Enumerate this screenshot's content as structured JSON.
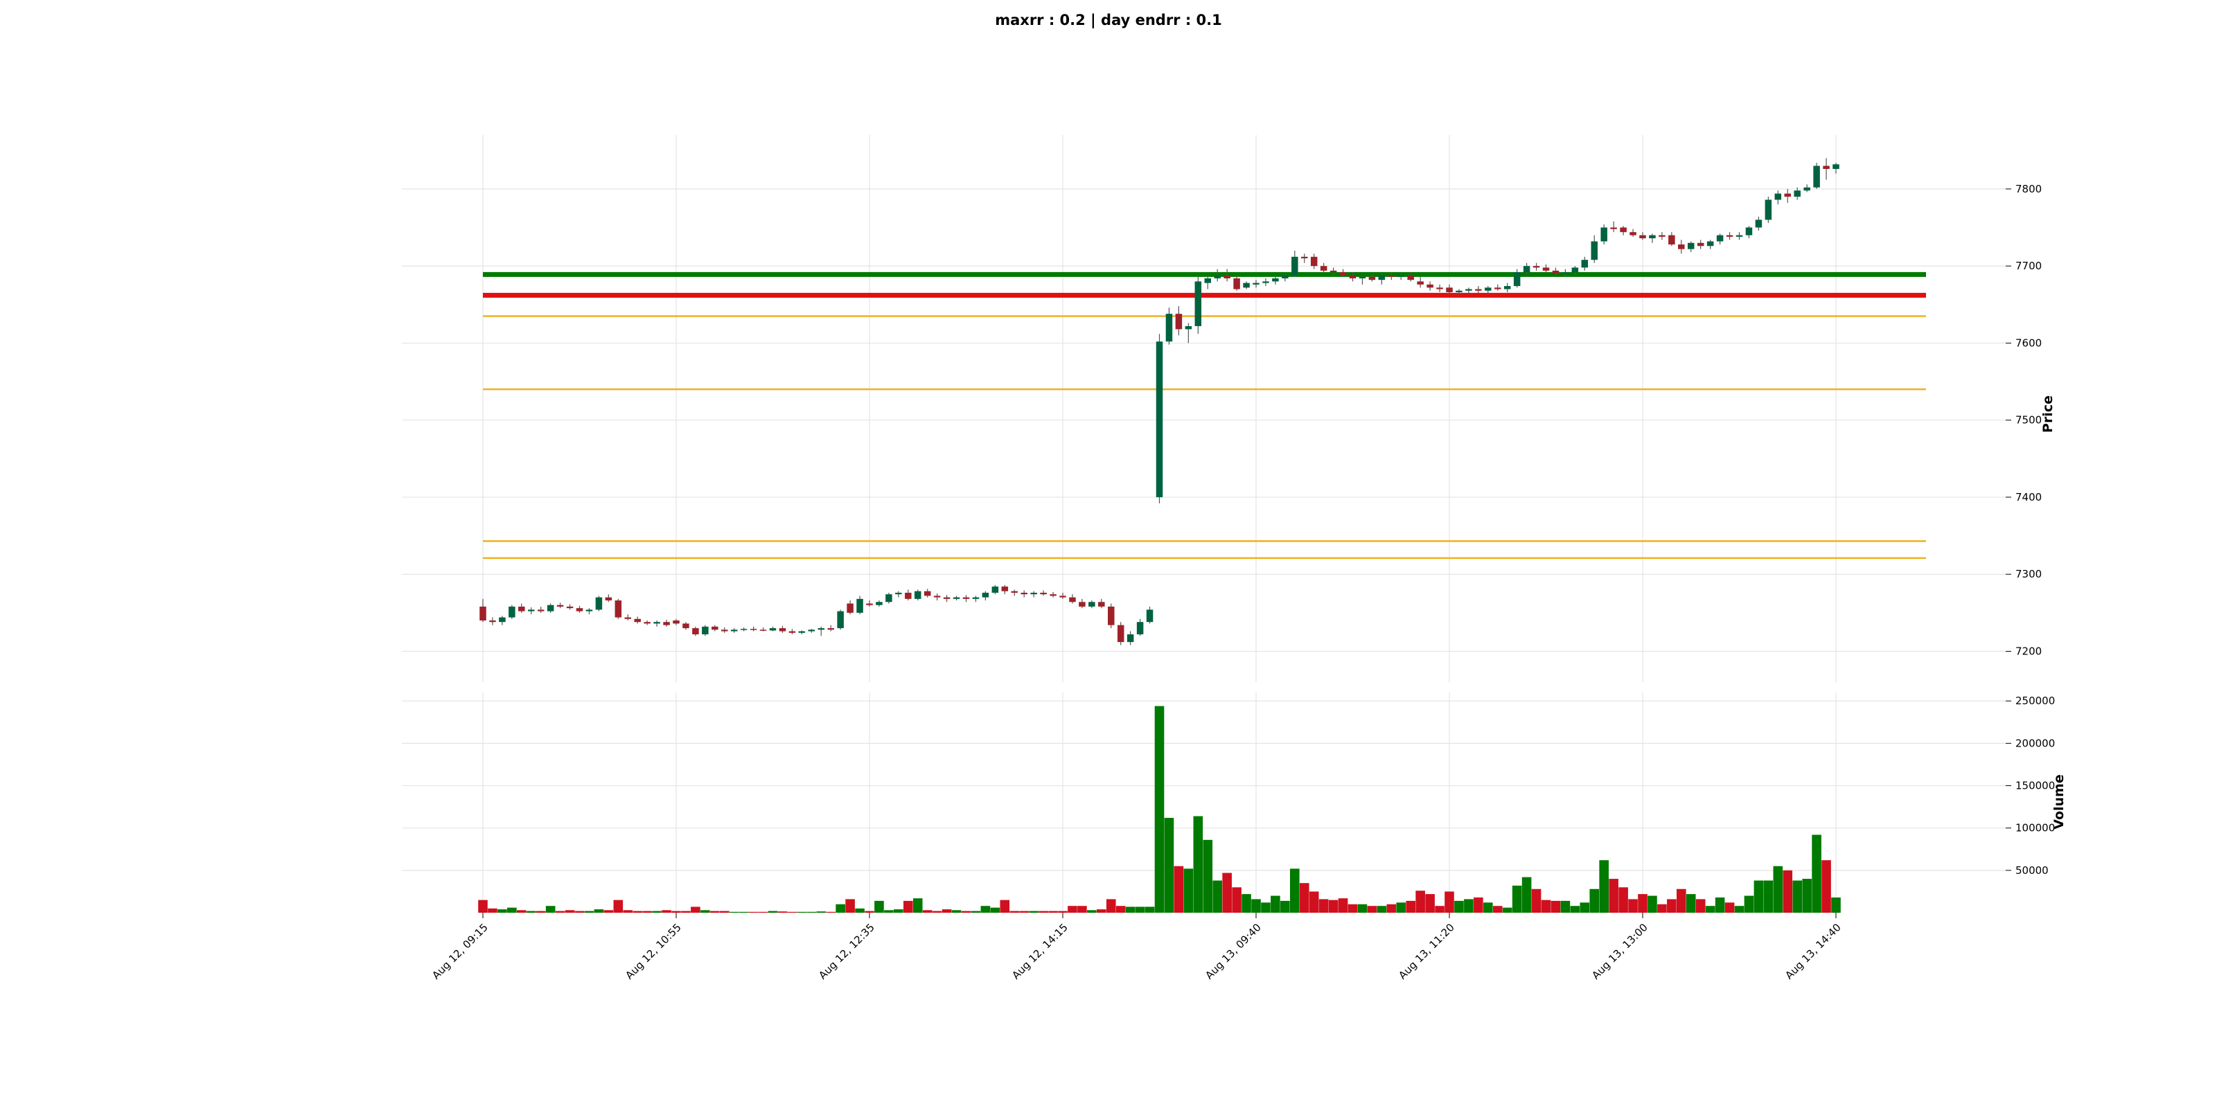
{
  "chart_data": {
    "type": "candlestick",
    "title": "maxrr : 0.2   |   day endrr : 0.1",
    "price_label": "Price",
    "volume_label": "Volume",
    "price_ylim": [
      7160,
      7870
    ],
    "volume_ylim": [
      0,
      260000
    ],
    "price_ticks": [
      7200,
      7300,
      7400,
      7500,
      7600,
      7700,
      7800
    ],
    "volume_ticks": [
      50000,
      100000,
      150000,
      200000,
      250000
    ],
    "x_tick_labels": [
      "Aug 12, 09:15",
      "Aug 12, 10:55",
      "Aug 12, 12:35",
      "Aug 12, 14:15",
      "Aug 13, 09:40",
      "Aug 13, 11:20",
      "Aug 13, 13:00",
      "Aug 13, 14:40"
    ],
    "x_tick_index": [
      0,
      20,
      40,
      60,
      80,
      100,
      120,
      140
    ],
    "colors": {
      "up": "#006340",
      "down": "#a02128",
      "vol_up": "#007a00",
      "vol_down": "#d0101e",
      "line_green": "#007a00",
      "line_red": "#e01010",
      "line_orange": "#f0b020"
    },
    "hlines": [
      {
        "price": 7689,
        "color": "#007a00",
        "width": 7
      },
      {
        "price": 7662,
        "color": "#e01010",
        "width": 7
      },
      {
        "price": 7635,
        "color": "#f0b020",
        "width": 2.5
      },
      {
        "price": 7540,
        "color": "#f0b020",
        "width": 2.5
      },
      {
        "price": 7343,
        "color": "#f0b020",
        "width": 2.5
      },
      {
        "price": 7321,
        "color": "#f0b020",
        "width": 2.5
      }
    ],
    "candles": [
      [
        7258,
        7268,
        7238,
        7240,
        15000
      ],
      [
        7240,
        7244,
        7234,
        7238,
        5000
      ],
      [
        7238,
        7246,
        7234,
        7244,
        4000
      ],
      [
        7244,
        7260,
        7242,
        7258,
        6000
      ],
      [
        7258,
        7262,
        7250,
        7252,
        3000
      ],
      [
        7252,
        7257,
        7248,
        7254,
        2000
      ],
      [
        7254,
        7258,
        7250,
        7252,
        2000
      ],
      [
        7252,
        7262,
        7250,
        7260,
        8000
      ],
      [
        7260,
        7263,
        7256,
        7258,
        2000
      ],
      [
        7258,
        7261,
        7254,
        7256,
        3000
      ],
      [
        7256,
        7259,
        7250,
        7252,
        2000
      ],
      [
        7252,
        7256,
        7248,
        7254,
        2000
      ],
      [
        7254,
        7272,
        7252,
        7270,
        4000
      ],
      [
        7270,
        7274,
        7264,
        7266,
        3000
      ],
      [
        7266,
        7268,
        7242,
        7244,
        15000
      ],
      [
        7244,
        7248,
        7240,
        7242,
        3000
      ],
      [
        7242,
        7245,
        7236,
        7238,
        2000
      ],
      [
        7238,
        7240,
        7234,
        7236,
        2000
      ],
      [
        7236,
        7240,
        7232,
        7238,
        2000
      ],
      [
        7238,
        7241,
        7232,
        7234,
        3000
      ],
      [
        7240,
        7242,
        7234,
        7236,
        2000
      ],
      [
        7236,
        7238,
        7228,
        7230,
        2000
      ],
      [
        7230,
        7232,
        7220,
        7222,
        7000
      ],
      [
        7222,
        7234,
        7220,
        7232,
        3000
      ],
      [
        7232,
        7234,
        7226,
        7228,
        2000
      ],
      [
        7228,
        7231,
        7224,
        7226,
        2000
      ],
      [
        7226,
        7230,
        7224,
        7228,
        1000
      ],
      [
        7228,
        7231,
        7226,
        7229,
        1000
      ],
      [
        7229,
        7232,
        7226,
        7228,
        1000
      ],
      [
        7228,
        7231,
        7226,
        7227,
        1000
      ],
      [
        7227,
        7232,
        7226,
        7230,
        2000
      ],
      [
        7230,
        7233,
        7224,
        7226,
        1500
      ],
      [
        7226,
        7229,
        7222,
        7224,
        1000
      ],
      [
        7224,
        7227,
        7222,
        7226,
        1000
      ],
      [
        7226,
        7229,
        7224,
        7228,
        1000
      ],
      [
        7228,
        7232,
        7220,
        7230,
        1500
      ],
      [
        7230,
        7234,
        7226,
        7228,
        1000
      ],
      [
        7230,
        7254,
        7228,
        7252,
        10000
      ],
      [
        7262,
        7266,
        7248,
        7250,
        16000
      ],
      [
        7250,
        7272,
        7248,
        7268,
        5000
      ],
      [
        7262,
        7266,
        7258,
        7260,
        2000
      ],
      [
        7260,
        7266,
        7258,
        7264,
        14000
      ],
      [
        7264,
        7276,
        7262,
        7274,
        3000
      ],
      [
        7274,
        7278,
        7270,
        7276,
        4000
      ],
      [
        7276,
        7280,
        7266,
        7268,
        14000
      ],
      [
        7268,
        7280,
        7266,
        7278,
        17000
      ],
      [
        7278,
        7281,
        7270,
        7272,
        3000
      ],
      [
        7272,
        7275,
        7266,
        7270,
        2000
      ],
      [
        7270,
        7273,
        7264,
        7268,
        4000
      ],
      [
        7268,
        7272,
        7266,
        7270,
        3000
      ],
      [
        7270,
        7273,
        7264,
        7268,
        2000
      ],
      [
        7268,
        7272,
        7264,
        7270,
        2000
      ],
      [
        7270,
        7278,
        7266,
        7276,
        8000
      ],
      [
        7276,
        7286,
        7274,
        7284,
        6000
      ],
      [
        7284,
        7286,
        7274,
        7278,
        15000
      ],
      [
        7278,
        7280,
        7272,
        7276,
        2000
      ],
      [
        7276,
        7279,
        7270,
        7274,
        2000
      ],
      [
        7274,
        7278,
        7270,
        7276,
        2000
      ],
      [
        7276,
        7279,
        7272,
        7274,
        2000
      ],
      [
        7274,
        7277,
        7270,
        7272,
        2000
      ],
      [
        7272,
        7276,
        7268,
        7270,
        2000
      ],
      [
        7270,
        7274,
        7262,
        7264,
        8000
      ],
      [
        7264,
        7268,
        7256,
        7258,
        8000
      ],
      [
        7258,
        7266,
        7256,
        7264,
        3000
      ],
      [
        7264,
        7268,
        7256,
        7258,
        4000
      ],
      [
        7258,
        7262,
        7230,
        7234,
        16000
      ],
      [
        7234,
        7238,
        7208,
        7212,
        8000
      ],
      [
        7212,
        7226,
        7208,
        7222,
        7000
      ],
      [
        7222,
        7242,
        7220,
        7238,
        7000
      ],
      [
        7238,
        7258,
        7236,
        7254,
        7000
      ],
      [
        7400,
        7612,
        7392,
        7602,
        244000
      ],
      [
        7602,
        7646,
        7598,
        7638,
        112000
      ],
      [
        7638,
        7648,
        7610,
        7618,
        55000
      ],
      [
        7618,
        7626,
        7600,
        7622,
        52000
      ],
      [
        7622,
        7686,
        7612,
        7680,
        114000
      ],
      [
        7678,
        7688,
        7670,
        7684,
        86000
      ],
      [
        7684,
        7696,
        7680,
        7688,
        38000
      ],
      [
        7688,
        7696,
        7680,
        7684,
        47000
      ],
      [
        7684,
        7688,
        7668,
        7670,
        30000
      ],
      [
        7672,
        7680,
        7670,
        7678,
        22000
      ],
      [
        7676,
        7682,
        7672,
        7678,
        16000
      ],
      [
        7678,
        7684,
        7674,
        7680,
        12000
      ],
      [
        7680,
        7688,
        7676,
        7684,
        20000
      ],
      [
        7684,
        7690,
        7680,
        7688,
        14000
      ],
      [
        7688,
        7720,
        7686,
        7712,
        52000
      ],
      [
        7712,
        7716,
        7704,
        7710,
        35000
      ],
      [
        7712,
        7716,
        7696,
        7700,
        25000
      ],
      [
        7700,
        7704,
        7690,
        7694,
        16000
      ],
      [
        7694,
        7698,
        7688,
        7692,
        15000
      ],
      [
        7692,
        7696,
        7686,
        7688,
        17000
      ],
      [
        7688,
        7692,
        7680,
        7684,
        10000
      ],
      [
        7684,
        7688,
        7676,
        7686,
        10000
      ],
      [
        7686,
        7690,
        7680,
        7682,
        8000
      ],
      [
        7682,
        7690,
        7676,
        7688,
        8000
      ],
      [
        7688,
        7692,
        7682,
        7686,
        10000
      ],
      [
        7686,
        7690,
        7682,
        7688,
        12000
      ],
      [
        7688,
        7692,
        7680,
        7682,
        14000
      ],
      [
        7680,
        7686,
        7672,
        7676,
        26000
      ],
      [
        7676,
        7680,
        7668,
        7672,
        22000
      ],
      [
        7672,
        7676,
        7666,
        7670,
        8000
      ],
      [
        7672,
        7676,
        7664,
        7666,
        25000
      ],
      [
        7666,
        7670,
        7662,
        7668,
        14000
      ],
      [
        7668,
        7672,
        7664,
        7670,
        16000
      ],
      [
        7670,
        7674,
        7664,
        7668,
        18000
      ],
      [
        7668,
        7674,
        7664,
        7672,
        12000
      ],
      [
        7672,
        7676,
        7668,
        7670,
        8000
      ],
      [
        7670,
        7678,
        7666,
        7674,
        6000
      ],
      [
        7674,
        7696,
        7672,
        7692,
        32000
      ],
      [
        7692,
        7704,
        7688,
        7700,
        42000
      ],
      [
        7700,
        7704,
        7694,
        7698,
        28000
      ],
      [
        7698,
        7702,
        7690,
        7694,
        15000
      ],
      [
        7694,
        7698,
        7688,
        7690,
        14000
      ],
      [
        7690,
        7696,
        7686,
        7692,
        14000
      ],
      [
        7692,
        7700,
        7688,
        7698,
        8000
      ],
      [
        7698,
        7712,
        7694,
        7708,
        12000
      ],
      [
        7708,
        7740,
        7704,
        7732,
        28000
      ],
      [
        7732,
        7754,
        7728,
        7750,
        62000
      ],
      [
        7750,
        7758,
        7744,
        7748,
        40000
      ],
      [
        7750,
        7752,
        7740,
        7744,
        30000
      ],
      [
        7744,
        7748,
        7738,
        7740,
        16000
      ],
      [
        7740,
        7744,
        7734,
        7736,
        22000
      ],
      [
        7736,
        7742,
        7730,
        7740,
        20000
      ],
      [
        7740,
        7744,
        7734,
        7738,
        10000
      ],
      [
        7740,
        7744,
        7726,
        7728,
        16000
      ],
      [
        7728,
        7734,
        7716,
        7722,
        28000
      ],
      [
        7722,
        7732,
        7718,
        7730,
        22000
      ],
      [
        7730,
        7734,
        7722,
        7726,
        16000
      ],
      [
        7726,
        7734,
        7722,
        7732,
        8000
      ],
      [
        7732,
        7742,
        7728,
        7740,
        18000
      ],
      [
        7740,
        7744,
        7734,
        7738,
        12000
      ],
      [
        7738,
        7744,
        7734,
        7740,
        8000
      ],
      [
        7740,
        7752,
        7736,
        7750,
        20000
      ],
      [
        7750,
        7764,
        7746,
        7760,
        38000
      ],
      [
        7760,
        7790,
        7756,
        7786,
        38000
      ],
      [
        7786,
        7798,
        7780,
        7794,
        55000
      ],
      [
        7794,
        7800,
        7782,
        7790,
        50000
      ],
      [
        7790,
        7802,
        7786,
        7798,
        38000
      ],
      [
        7798,
        7806,
        7796,
        7802,
        40000
      ],
      [
        7802,
        7834,
        7800,
        7830,
        92000
      ],
      [
        7830,
        7840,
        7812,
        7826,
        62000
      ],
      [
        7826,
        7834,
        7820,
        7832,
        18000
      ]
    ]
  }
}
